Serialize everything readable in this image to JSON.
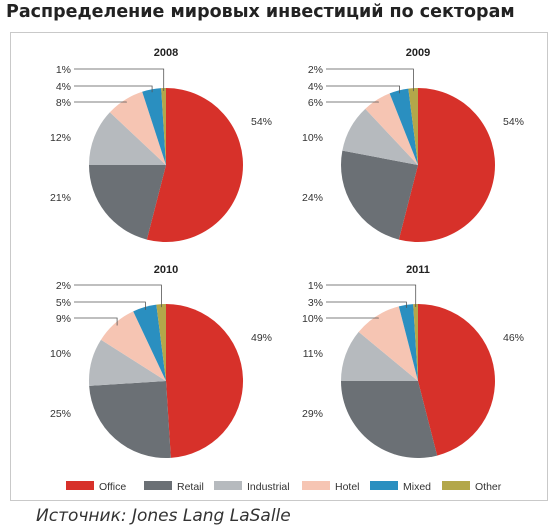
{
  "title": "Распределение мировых инвестиций по секторам",
  "source": "Источник: Jones Lang LaSalle",
  "chart_data": {
    "type": "pie",
    "categories": [
      "Office",
      "Retail",
      "Industrial",
      "Hotel",
      "Mixed",
      "Other"
    ],
    "colors": [
      "#d7312a",
      "#6b7075",
      "#b6babe",
      "#f6c5b3",
      "#2a8fc0",
      "#b3a74a"
    ],
    "legend_position": "bottom",
    "charts": [
      {
        "title": "2008",
        "values": [
          54,
          21,
          12,
          8,
          4,
          1
        ],
        "labels": [
          "54%",
          "21%",
          "12%",
          "8%",
          "4%",
          "1%"
        ]
      },
      {
        "title": "2009",
        "values": [
          54,
          24,
          10,
          6,
          4,
          2
        ],
        "labels": [
          "54%",
          "24%",
          "10%",
          "6%",
          "4%",
          "2%"
        ]
      },
      {
        "title": "2010",
        "values": [
          49,
          25,
          10,
          9,
          5,
          2
        ],
        "labels": [
          "49%",
          "25%",
          "10%",
          "9%",
          "5%",
          "2%"
        ]
      },
      {
        "title": "2011",
        "values": [
          46,
          29,
          11,
          10,
          3,
          1
        ],
        "labels": [
          "46%",
          "29%",
          "11%",
          "10%",
          "3%",
          "1%"
        ]
      }
    ]
  }
}
